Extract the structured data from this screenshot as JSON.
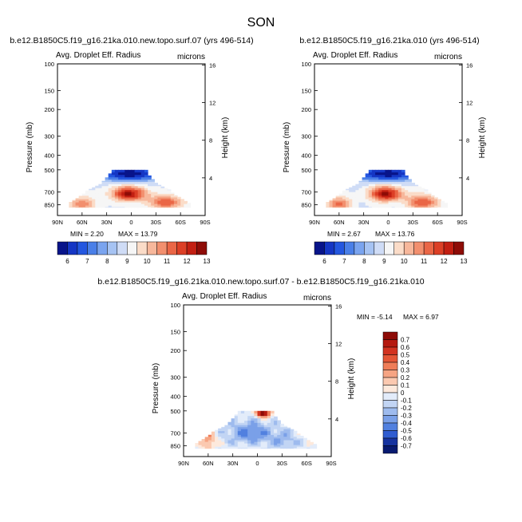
{
  "season": "SON",
  "chart_data": [
    {
      "type": "heatmap",
      "title": "b.e12.B1850C5.f19_g16.21ka.010.new.topo.surf.07 (yrs 496-514)",
      "left_label": "Avg. Droplet Eff. Radius",
      "right_label": "microns",
      "ylabel": "Pressure (mb)",
      "ylabel_right": "Height (km)",
      "x_ticks": [
        "90N",
        "60N",
        "30N",
        "0",
        "30S",
        "60S",
        "90S"
      ],
      "y_ticks": [
        "100",
        "150",
        "200",
        "300",
        "400",
        "500",
        "700",
        "850"
      ],
      "y_ticks_right": [
        "16",
        "12",
        "8",
        "4"
      ],
      "min_text": "MIN =  2.20",
      "max_text": "MAX = 13.79",
      "min": 2.2,
      "max": 13.79,
      "colorbar": {
        "labels": [
          "6",
          "7",
          "8",
          "9",
          "10",
          "11",
          "12",
          "13"
        ],
        "colors": [
          "#08148a",
          "#1536c4",
          "#2457e0",
          "#4a7fe8",
          "#7aa4ef",
          "#a6c3f3",
          "#cfdcf6",
          "#f6f6f6",
          "#fbdcc8",
          "#f7b79b",
          "#f28f6e",
          "#ea6646",
          "#dc3f26",
          "#c21f12",
          "#8e0c07"
        ]
      },
      "field": {
        "pressure_levels_mb": [
          850,
          700,
          600,
          500
        ],
        "latitude_extent": [
          "75N",
          "68S"
        ],
        "pattern": "low values near cloud top (~500 mb), peak near 5N at 700 mb, secondary maxima near 40S and 65N at 850 mb"
      }
    },
    {
      "type": "heatmap",
      "title": "b.e12.B1850C5.f19_g16.21ka.010 (yrs 496-514)",
      "left_label": "Avg. Droplet Eff. Radius",
      "right_label": "microns",
      "ylabel": "Pressure (mb)",
      "ylabel_right": "Height (km)",
      "x_ticks": [
        "90N",
        "60N",
        "30N",
        "0",
        "30S",
        "60S",
        "90S"
      ],
      "y_ticks": [
        "100",
        "150",
        "200",
        "300",
        "400",
        "500",
        "700",
        "850"
      ],
      "y_ticks_right": [
        "16",
        "12",
        "8",
        "4"
      ],
      "min_text": "MIN =  2.67",
      "max_text": "MAX = 13.76",
      "min": 2.67,
      "max": 13.76,
      "colorbar": {
        "labels": [
          "6",
          "7",
          "8",
          "9",
          "10",
          "11",
          "12",
          "13"
        ],
        "colors": [
          "#08148a",
          "#1536c4",
          "#2457e0",
          "#4a7fe8",
          "#7aa4ef",
          "#a6c3f3",
          "#cfdcf6",
          "#f6f6f6",
          "#fbdcc8",
          "#f7b79b",
          "#f28f6e",
          "#ea6646",
          "#dc3f26",
          "#c21f12",
          "#8e0c07"
        ]
      },
      "field": {
        "pressure_levels_mb": [
          850,
          700,
          600,
          500
        ],
        "latitude_extent": [
          "75N",
          "68S"
        ],
        "pattern": "low values near cloud top (~500 mb), peak near 5N at 700 mb, secondary maxima near 40S and 65N at 850 mb"
      }
    },
    {
      "type": "heatmap",
      "title": "b.e12.B1850C5.f19_g16.21ka.010.new.topo.surf.07 - b.e12.B1850C5.f19_g16.21ka.010",
      "left_label": "Avg. Droplet Eff. Radius",
      "right_label": "microns",
      "ylabel": "Pressure (mb)",
      "ylabel_right": "Height (km)",
      "x_ticks": [
        "90N",
        "60N",
        "30N",
        "0",
        "30S",
        "60S",
        "90S"
      ],
      "y_ticks": [
        "100",
        "150",
        "200",
        "300",
        "400",
        "500",
        "700",
        "850"
      ],
      "y_ticks_right": [
        "16",
        "12",
        "8",
        "4"
      ],
      "min_text": "MIN = -5.14",
      "max_text": "MAX =  6.97",
      "min": -5.14,
      "max": 6.97,
      "colorbar": {
        "labels": [
          "0.7",
          "0.6",
          "0.5",
          "0.4",
          "0.3",
          "0.2",
          "0.1",
          "0",
          "-0.1",
          "-0.2",
          "-0.3",
          "-0.4",
          "-0.5",
          "-0.6",
          "-0.7"
        ],
        "colors": [
          "#8e0c07",
          "#b51a10",
          "#d23320",
          "#e45636",
          "#ef7d58",
          "#f6a483",
          "#fbc9b0",
          "#fde9dc",
          "#e3ecfa",
          "#c2d5f4",
          "#9ebbee",
          "#7aa0e8",
          "#5180df",
          "#2f5cd0",
          "#16339f",
          "#081a70"
        ]
      },
      "field": {
        "pressure_levels_mb": [
          850,
          700,
          600,
          500
        ],
        "latitude_extent": [
          "75N",
          "68S"
        ],
        "pattern": "mostly weak negative differences, positive near 60N and at cloud top near 0-10S"
      }
    }
  ]
}
